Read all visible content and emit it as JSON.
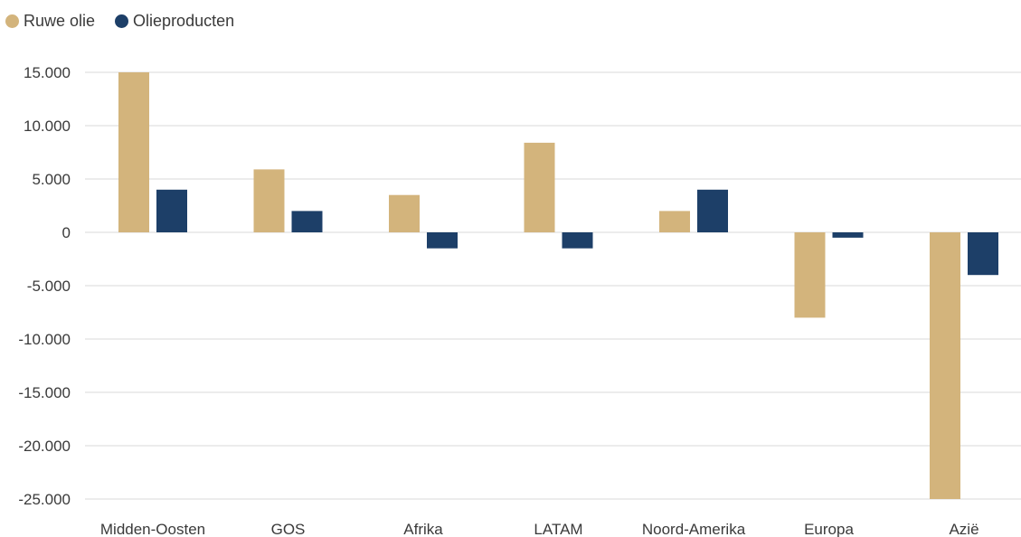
{
  "chart_data": {
    "type": "bar",
    "categories": [
      "Midden-Oosten",
      "GOS",
      "Afrika",
      "LATAM",
      "Noord-Amerika",
      "Europa",
      "Azië"
    ],
    "series": [
      {
        "name": "Ruwe olie",
        "color": "#D3B47C",
        "values": [
          15000,
          5900,
          3500,
          8400,
          2000,
          -8000,
          -25000
        ]
      },
      {
        "name": "Olieproducten",
        "color": "#1D3F68",
        "values": [
          4000,
          2000,
          -1500,
          -1500,
          4000,
          -500,
          -4000
        ]
      }
    ],
    "ylim": [
      -25000,
      15000
    ],
    "yticks": [
      15000,
      10000,
      5000,
      0,
      -5000,
      -10000,
      -15000,
      -20000,
      -25000
    ],
    "ytick_labels": [
      "15.000",
      "10.000",
      "5.000",
      "0",
      "-5.000",
      "-10.000",
      "-15.000",
      "-20.000",
      "-25.000"
    ],
    "grid": true,
    "legend_position": "top-left",
    "title": "",
    "xlabel": "",
    "ylabel": ""
  }
}
